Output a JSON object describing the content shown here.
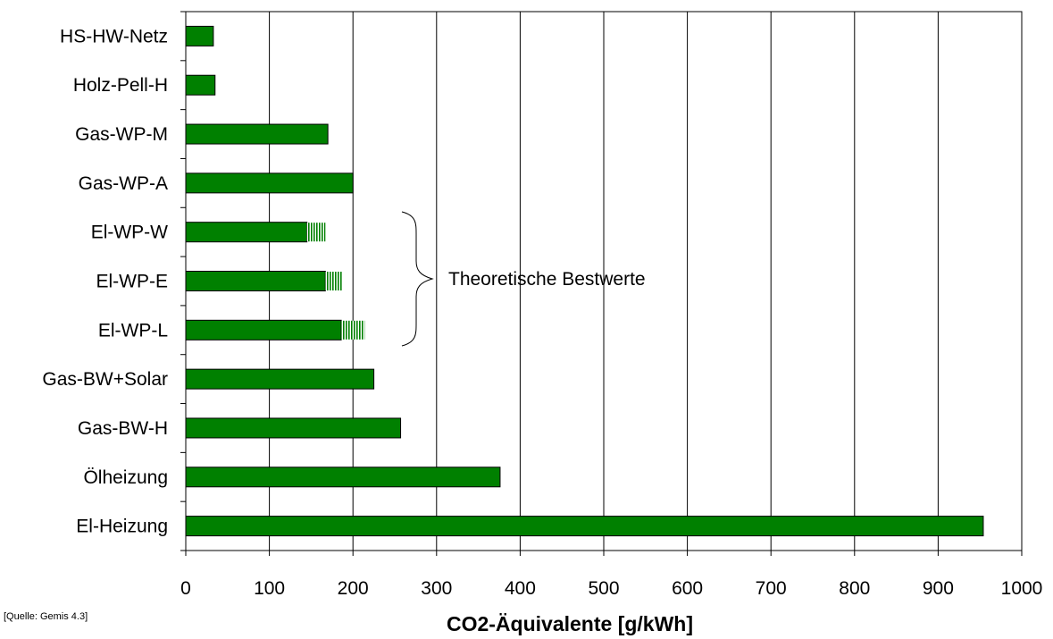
{
  "chart_data": {
    "type": "bar",
    "orientation": "horizontal",
    "categories": [
      "HS-HW-Netz",
      "Holz-Pell-H",
      "Gas-WP-M",
      "Gas-WP-A",
      "El-WP-W",
      "El-WP-E",
      "El-WP-L",
      "Gas-BW+Solar",
      "Gas-BW-H",
      "Ölheizung",
      "El-Heizung"
    ],
    "series": [
      {
        "values": [
          33,
          35,
          170,
          200,
          145,
          167,
          186,
          225,
          257,
          376,
          954
        ]
      },
      {
        "values": [
          0,
          0,
          0,
          0,
          22,
          20,
          28,
          0,
          0,
          0,
          0
        ]
      }
    ],
    "x_ticks": [
      "0",
      "100",
      "200",
      "300",
      "400",
      "500",
      "600",
      "700",
      "800",
      "900",
      "1000"
    ],
    "xlim": [
      0,
      1000
    ],
    "xlabel": "CO2-Äquivalente [g/kWh]",
    "ylabel": "",
    "title": "",
    "annotation": "Theoretische Bestwerte",
    "grid": "vertical",
    "colors": {
      "bar": "#008000",
      "hatch": "#008000",
      "grid": "#000000"
    }
  },
  "source_note": "[Quelle: Gemis 4.3]"
}
